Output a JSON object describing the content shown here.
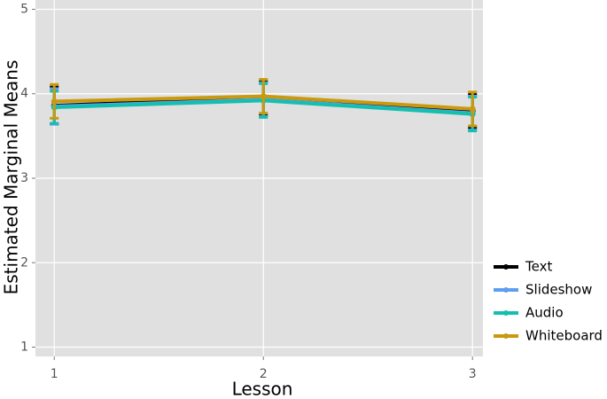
{
  "chart_data": {
    "type": "line",
    "x_label": "Lesson",
    "y_label": "Estimated Marginal Means",
    "x": [
      1,
      2,
      3
    ],
    "xlim": [
      0.91,
      3.05
    ],
    "xticks": [
      1,
      2,
      3
    ],
    "ylim": [
      0.89,
      5.11
    ],
    "yticks": [
      1,
      2,
      3,
      4,
      5
    ],
    "grid": true,
    "legend": "right",
    "series": [
      {
        "name": "Text",
        "color": "#000000",
        "values": [
          3.86,
          3.95,
          3.8
        ],
        "errors": [
          0.22,
          0.2,
          0.2
        ]
      },
      {
        "name": "Slideshow",
        "color": "#5c9ef0",
        "values": [
          3.85,
          3.93,
          3.77
        ],
        "errors": [
          0.21,
          0.2,
          0.2
        ]
      },
      {
        "name": "Audio",
        "color": "#14bfb0",
        "values": [
          3.84,
          3.92,
          3.76
        ],
        "errors": [
          0.19,
          0.2,
          0.2
        ]
      },
      {
        "name": "Whiteboard",
        "color": "#c99a0e",
        "values": [
          3.91,
          3.97,
          3.82
        ],
        "errors": [
          0.2,
          0.2,
          0.2
        ]
      }
    ]
  }
}
